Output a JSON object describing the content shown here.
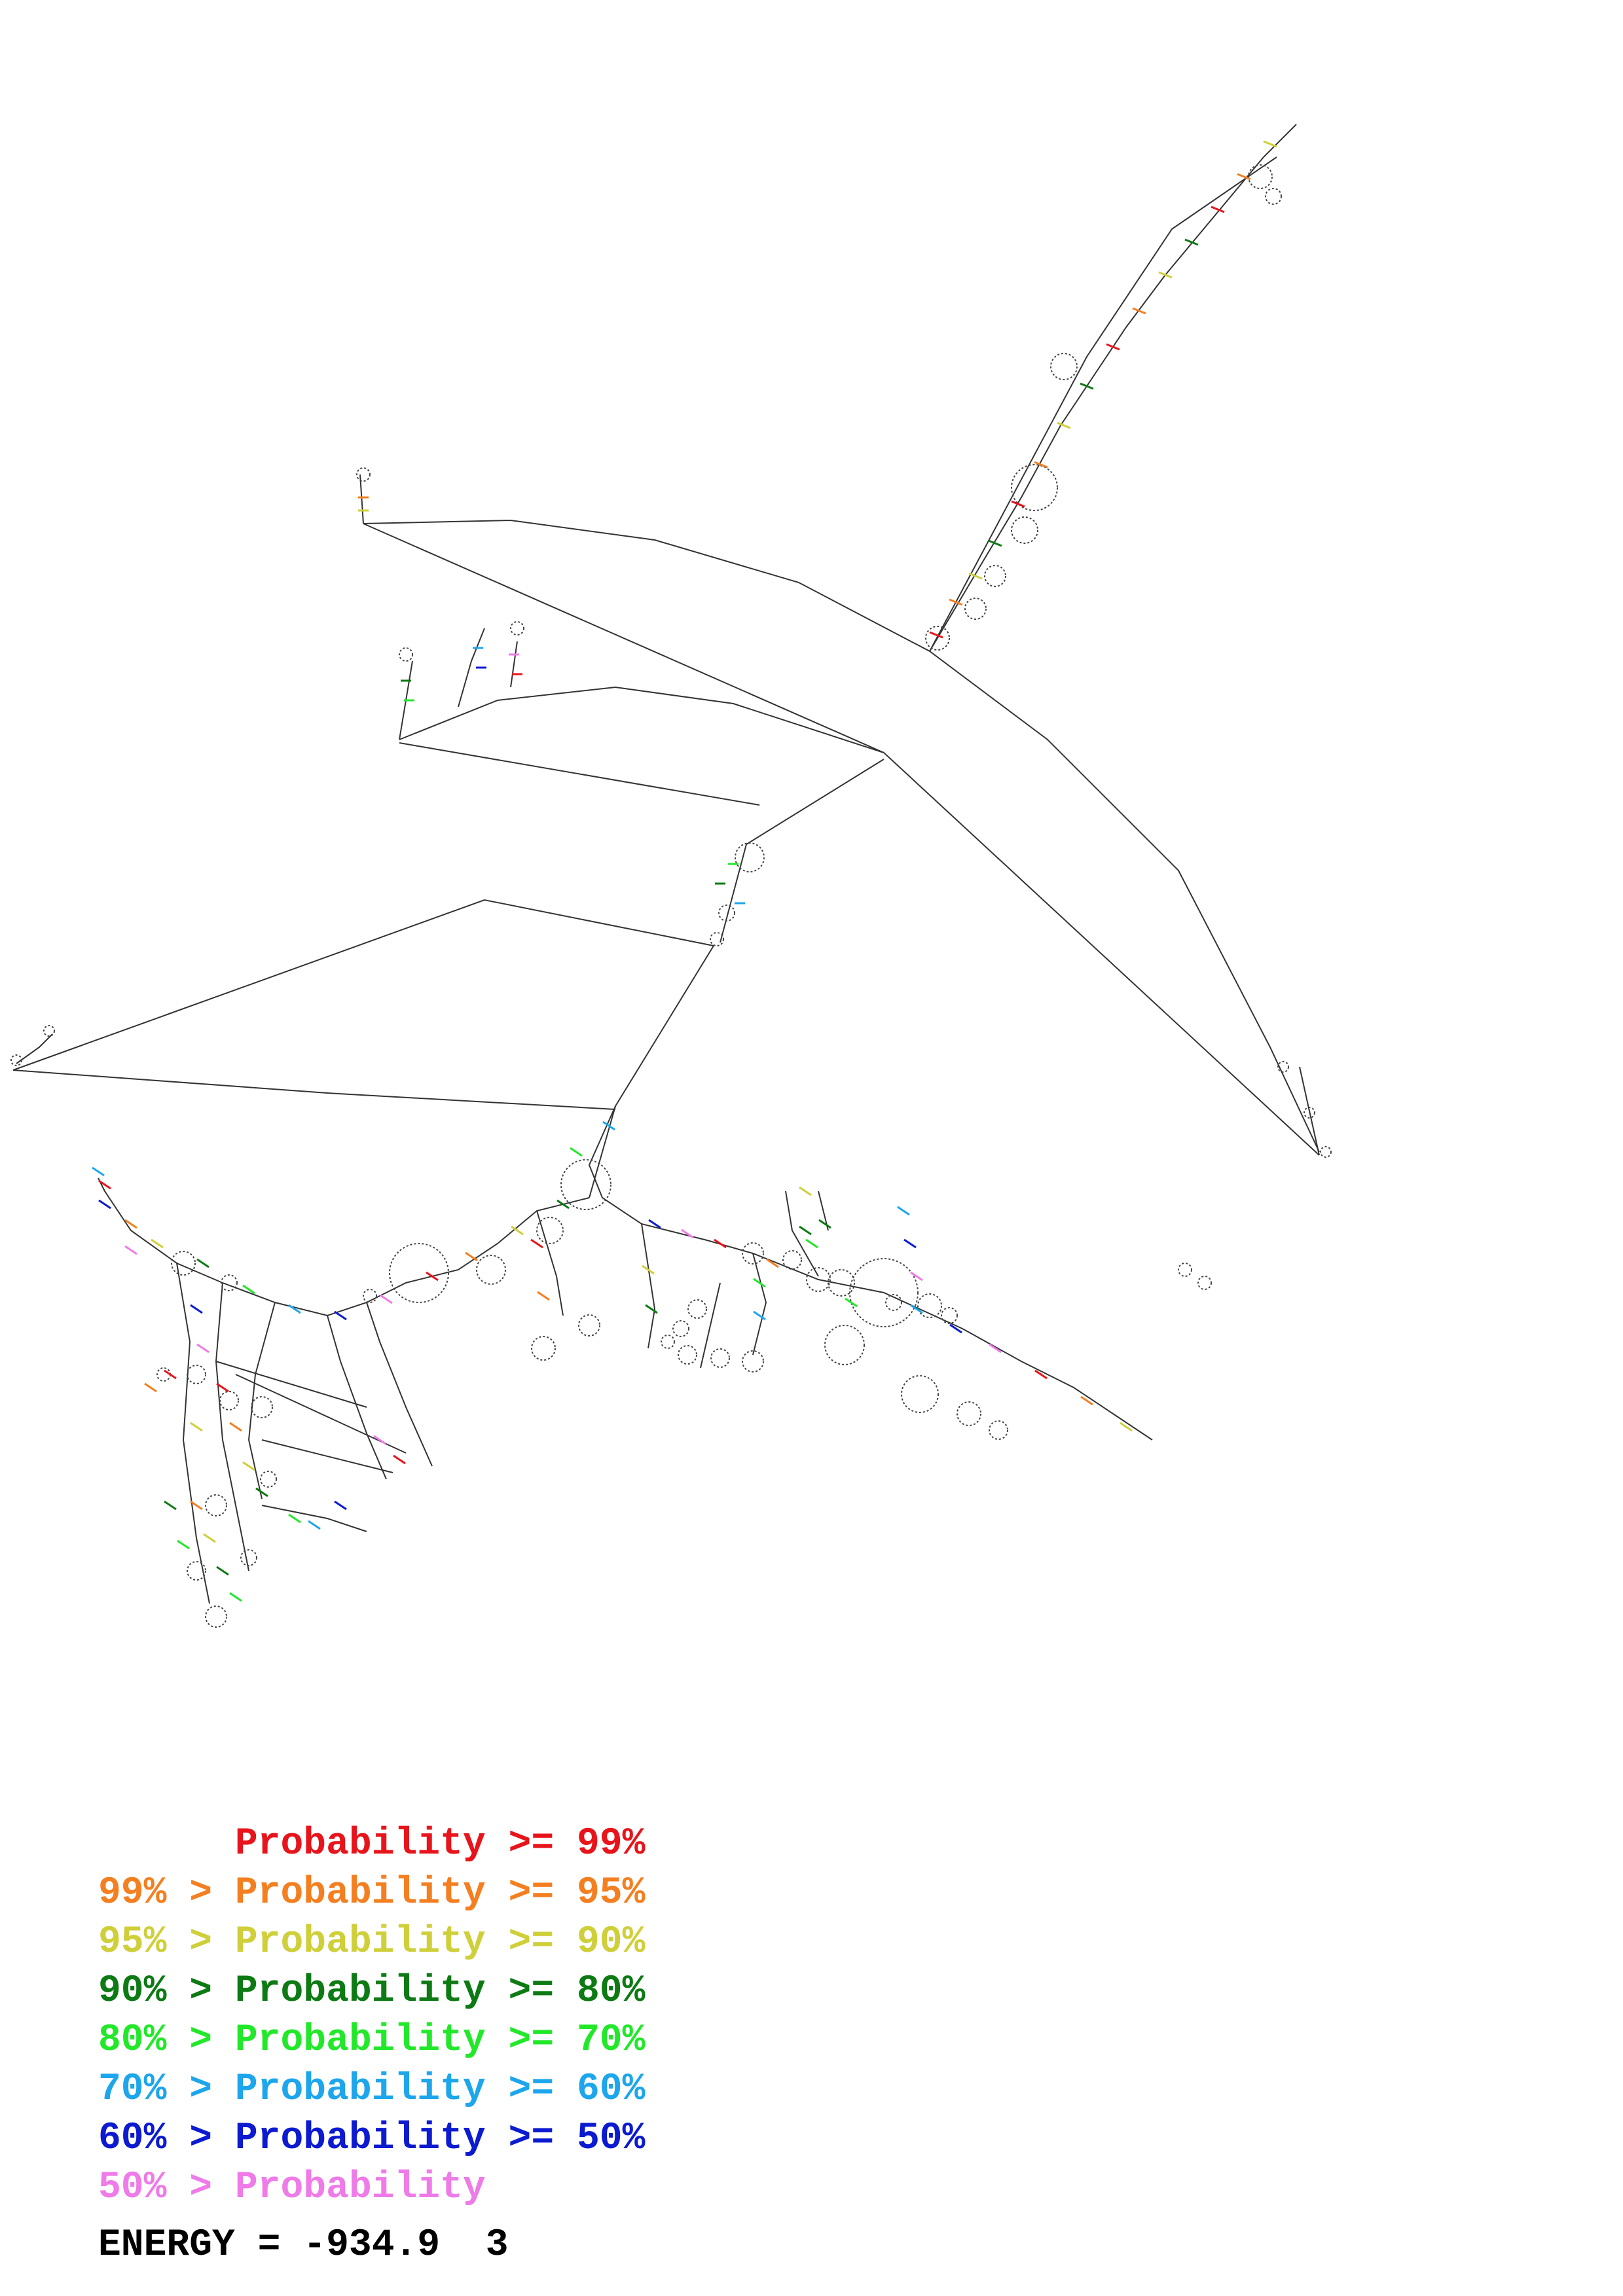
{
  "legend": [
    {
      "range_upper": "",
      "sep": "",
      "label": "Probability",
      "op": ">=",
      "range_lower": "99%",
      "color": "#e8141b"
    },
    {
      "range_upper": "99%",
      "sep": ">",
      "label": "Probability",
      "op": ">=",
      "range_lower": "95%",
      "color": "#f47f20"
    },
    {
      "range_upper": "95%",
      "sep": ">",
      "label": "Probability",
      "op": ">=",
      "range_lower": "90%",
      "color": "#cfcf3a"
    },
    {
      "range_upper": "90%",
      "sep": ">",
      "label": "Probability",
      "op": ">=",
      "range_lower": "80%",
      "color": "#0d7a14"
    },
    {
      "range_upper": "80%",
      "sep": ">",
      "label": "Probability",
      "op": ">=",
      "range_lower": "70%",
      "color": "#22e82a"
    },
    {
      "range_upper": "70%",
      "sep": ">",
      "label": "Probability",
      "op": ">=",
      "range_lower": "60%",
      "color": "#1da6ec"
    },
    {
      "range_upper": "60%",
      "sep": ">",
      "label": "Probability",
      "op": ">=",
      "range_lower": "50%",
      "color": "#0c1ad0"
    },
    {
      "range_upper": "50%",
      "sep": ">",
      "label": "Probability",
      "op": "",
      "range_lower": "",
      "color": "#ef7be8"
    }
  ],
  "energy": {
    "label": "ENERGY",
    "eq": "=",
    "value": "-934.9",
    "index": "3"
  },
  "diagram": {
    "line_color": "#333333",
    "loop_color": "#444444"
  }
}
